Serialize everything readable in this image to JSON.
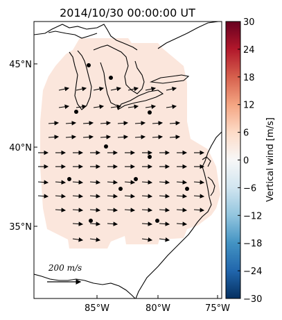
{
  "title": "2014/10/30 00:00:00 UT",
  "map": {
    "lat_ticks": [
      "45°N",
      "40°N",
      "35°N"
    ],
    "lon_ticks": [
      "85°W",
      "80°W",
      "75°W"
    ]
  },
  "colorbar": {
    "label": "Vertical wind [m/s]",
    "range": [
      -30,
      30
    ],
    "ticks": [
      "30",
      "24",
      "18",
      "12",
      "6",
      "0",
      "−6",
      "−12",
      "−18",
      "−24",
      "−30"
    ],
    "colormap": "RdBu_r",
    "field_color": "#fbe6dc"
  },
  "scale": {
    "label": "200 m/s"
  }
}
